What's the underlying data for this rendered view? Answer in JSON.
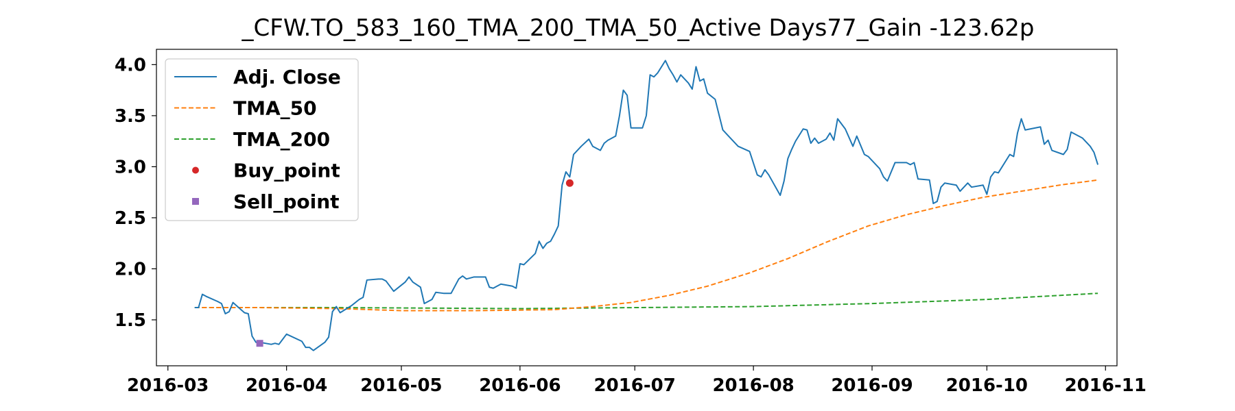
{
  "chart_data": {
    "type": "line",
    "title": "_CFW.TO_583_160_TMA_200_TMA_50_Active Days77_Gain -123.62p",
    "xlabel": "",
    "ylabel": "",
    "xlim": [
      "2016-02-27",
      "2016-11-04"
    ],
    "ylim": [
      1.05,
      4.15
    ],
    "x_ticks": [
      "2016-03",
      "2016-04",
      "2016-05",
      "2016-06",
      "2016-07",
      "2016-08",
      "2016-09",
      "2016-10",
      "2016-11"
    ],
    "y_ticks": [
      1.5,
      2.0,
      2.5,
      3.0,
      3.5,
      4.0
    ],
    "grid": false,
    "legend_position": "upper-left",
    "legend": [
      "Adj. Close",
      "TMA_50",
      "TMA_200",
      "Buy_point",
      "Sell_point"
    ],
    "colors": {
      "adj_close": "#1f77b4",
      "tma_50": "#ff7f0e",
      "tma_200": "#2ca02c",
      "buy_point": "#d62728",
      "sell_point": "#9467bd"
    },
    "series": [
      {
        "name": "Adj. Close",
        "style": "solid",
        "points": [
          [
            "2016-03-08",
            1.62
          ],
          [
            "2016-03-09",
            1.62
          ],
          [
            "2016-03-10",
            1.75
          ],
          [
            "2016-03-11",
            1.73
          ],
          [
            "2016-03-14",
            1.68
          ],
          [
            "2016-03-15",
            1.66
          ],
          [
            "2016-03-16",
            1.56
          ],
          [
            "2016-03-17",
            1.58
          ],
          [
            "2016-03-18",
            1.67
          ],
          [
            "2016-03-21",
            1.57
          ],
          [
            "2016-03-22",
            1.56
          ],
          [
            "2016-03-23",
            1.34
          ],
          [
            "2016-03-24",
            1.28
          ],
          [
            "2016-03-25",
            1.28
          ],
          [
            "2016-03-28",
            1.26
          ],
          [
            "2016-03-29",
            1.27
          ],
          [
            "2016-03-30",
            1.26
          ],
          [
            "2016-03-31",
            1.31
          ],
          [
            "2016-04-01",
            1.36
          ],
          [
            "2016-04-05",
            1.29
          ],
          [
            "2016-04-06",
            1.23
          ],
          [
            "2016-04-07",
            1.23
          ],
          [
            "2016-04-08",
            1.2
          ],
          [
            "2016-04-11",
            1.28
          ],
          [
            "2016-04-12",
            1.33
          ],
          [
            "2016-04-13",
            1.58
          ],
          [
            "2016-04-14",
            1.63
          ],
          [
            "2016-04-15",
            1.57
          ],
          [
            "2016-04-18",
            1.64
          ],
          [
            "2016-04-20",
            1.7
          ],
          [
            "2016-04-21",
            1.72
          ],
          [
            "2016-04-22",
            1.89
          ],
          [
            "2016-04-25",
            1.9
          ],
          [
            "2016-04-26",
            1.9
          ],
          [
            "2016-04-27",
            1.88
          ],
          [
            "2016-04-29",
            1.78
          ],
          [
            "2016-05-02",
            1.87
          ],
          [
            "2016-05-03",
            1.92
          ],
          [
            "2016-05-04",
            1.87
          ],
          [
            "2016-05-06",
            1.82
          ],
          [
            "2016-05-07",
            1.66
          ],
          [
            "2016-05-09",
            1.7
          ],
          [
            "2016-05-10",
            1.77
          ],
          [
            "2016-05-12",
            1.76
          ],
          [
            "2016-05-14",
            1.76
          ],
          [
            "2016-05-16",
            1.9
          ],
          [
            "2016-05-17",
            1.93
          ],
          [
            "2016-05-18",
            1.9
          ],
          [
            "2016-05-20",
            1.92
          ],
          [
            "2016-05-23",
            1.92
          ],
          [
            "2016-05-24",
            1.82
          ],
          [
            "2016-05-25",
            1.81
          ],
          [
            "2016-05-27",
            1.85
          ],
          [
            "2016-05-30",
            1.83
          ],
          [
            "2016-05-31",
            1.81
          ],
          [
            "2016-06-01",
            2.05
          ],
          [
            "2016-06-02",
            2.04
          ],
          [
            "2016-06-05",
            2.15
          ],
          [
            "2016-06-06",
            2.27
          ],
          [
            "2016-06-07",
            2.2
          ],
          [
            "2016-06-08",
            2.25
          ],
          [
            "2016-06-09",
            2.27
          ],
          [
            "2016-06-10",
            2.34
          ],
          [
            "2016-06-11",
            2.42
          ],
          [
            "2016-06-12",
            2.82
          ],
          [
            "2016-06-13",
            2.95
          ],
          [
            "2016-06-14",
            2.9
          ],
          [
            "2016-06-15",
            3.12
          ],
          [
            "2016-06-17",
            3.2
          ],
          [
            "2016-06-19",
            3.27
          ],
          [
            "2016-06-20",
            3.2
          ],
          [
            "2016-06-22",
            3.16
          ],
          [
            "2016-06-23",
            3.23
          ],
          [
            "2016-06-24",
            3.26
          ],
          [
            "2016-06-26",
            3.3
          ],
          [
            "2016-06-27",
            3.5
          ],
          [
            "2016-06-28",
            3.75
          ],
          [
            "2016-06-29",
            3.7
          ],
          [
            "2016-06-30",
            3.38
          ],
          [
            "2016-07-03",
            3.38
          ],
          [
            "2016-07-04",
            3.5
          ],
          [
            "2016-07-05",
            3.9
          ],
          [
            "2016-07-06",
            3.88
          ],
          [
            "2016-07-07",
            3.92
          ],
          [
            "2016-07-08",
            3.98
          ],
          [
            "2016-07-09",
            4.04
          ],
          [
            "2016-07-10",
            3.96
          ],
          [
            "2016-07-11",
            3.9
          ],
          [
            "2016-07-12",
            3.83
          ],
          [
            "2016-07-13",
            3.9
          ],
          [
            "2016-07-15",
            3.82
          ],
          [
            "2016-07-16",
            3.76
          ],
          [
            "2016-07-17",
            3.98
          ],
          [
            "2016-07-18",
            3.84
          ],
          [
            "2016-07-19",
            3.86
          ],
          [
            "2016-07-20",
            3.72
          ],
          [
            "2016-07-22",
            3.66
          ],
          [
            "2016-07-24",
            3.36
          ],
          [
            "2016-07-26",
            3.28
          ],
          [
            "2016-07-28",
            3.2
          ],
          [
            "2016-07-31",
            3.15
          ],
          [
            "2016-08-02",
            2.92
          ],
          [
            "2016-08-03",
            2.9
          ],
          [
            "2016-08-04",
            2.97
          ],
          [
            "2016-08-05",
            2.92
          ],
          [
            "2016-08-08",
            2.72
          ],
          [
            "2016-08-09",
            2.86
          ],
          [
            "2016-08-10",
            3.08
          ],
          [
            "2016-08-11",
            3.17
          ],
          [
            "2016-08-12",
            3.25
          ],
          [
            "2016-08-14",
            3.37
          ],
          [
            "2016-08-15",
            3.36
          ],
          [
            "2016-08-16",
            3.23
          ],
          [
            "2016-08-17",
            3.28
          ],
          [
            "2016-08-18",
            3.23
          ],
          [
            "2016-08-20",
            3.27
          ],
          [
            "2016-08-21",
            3.33
          ],
          [
            "2016-08-22",
            3.26
          ],
          [
            "2016-08-23",
            3.47
          ],
          [
            "2016-08-25",
            3.37
          ],
          [
            "2016-08-27",
            3.2
          ],
          [
            "2016-08-28",
            3.3
          ],
          [
            "2016-08-30",
            3.12
          ],
          [
            "2016-08-31",
            3.1
          ],
          [
            "2016-09-03",
            2.98
          ],
          [
            "2016-09-04",
            2.9
          ],
          [
            "2016-09-05",
            2.86
          ],
          [
            "2016-09-07",
            3.04
          ],
          [
            "2016-09-10",
            3.04
          ],
          [
            "2016-09-11",
            3.02
          ],
          [
            "2016-09-12",
            3.04
          ],
          [
            "2016-09-13",
            2.88
          ],
          [
            "2016-09-16",
            2.87
          ],
          [
            "2016-09-17",
            2.64
          ],
          [
            "2016-09-18",
            2.66
          ],
          [
            "2016-09-19",
            2.8
          ],
          [
            "2016-09-20",
            2.84
          ],
          [
            "2016-09-23",
            2.82
          ],
          [
            "2016-09-24",
            2.76
          ],
          [
            "2016-09-25",
            2.8
          ],
          [
            "2016-09-26",
            2.84
          ],
          [
            "2016-09-27",
            2.8
          ],
          [
            "2016-09-30",
            2.82
          ],
          [
            "2016-10-01",
            2.73
          ],
          [
            "2016-10-02",
            2.9
          ],
          [
            "2016-10-03",
            2.95
          ],
          [
            "2016-10-04",
            2.94
          ],
          [
            "2016-10-07",
            3.12
          ],
          [
            "2016-10-08",
            3.1
          ],
          [
            "2016-10-09",
            3.33
          ],
          [
            "2016-10-10",
            3.47
          ],
          [
            "2016-10-11",
            3.36
          ],
          [
            "2016-10-15",
            3.39
          ],
          [
            "2016-10-16",
            3.22
          ],
          [
            "2016-10-17",
            3.26
          ],
          [
            "2016-10-18",
            3.16
          ],
          [
            "2016-10-21",
            3.12
          ],
          [
            "2016-10-22",
            3.17
          ],
          [
            "2016-10-23",
            3.34
          ],
          [
            "2016-10-26",
            3.28
          ],
          [
            "2016-10-28",
            3.2
          ],
          [
            "2016-10-29",
            3.14
          ],
          [
            "2016-10-30",
            3.02
          ]
        ]
      },
      {
        "name": "TMA_50",
        "style": "dashed",
        "points": [
          [
            "2016-03-08",
            1.62
          ],
          [
            "2016-03-25",
            1.62
          ],
          [
            "2016-04-15",
            1.61
          ],
          [
            "2016-05-01",
            1.59
          ],
          [
            "2016-05-20",
            1.59
          ],
          [
            "2016-06-10",
            1.6
          ],
          [
            "2016-06-20",
            1.63
          ],
          [
            "2016-06-30",
            1.67
          ],
          [
            "2016-07-10",
            1.74
          ],
          [
            "2016-07-20",
            1.83
          ],
          [
            "2016-07-31",
            1.96
          ],
          [
            "2016-08-10",
            2.1
          ],
          [
            "2016-08-20",
            2.26
          ],
          [
            "2016-08-31",
            2.42
          ],
          [
            "2016-09-10",
            2.53
          ],
          [
            "2016-09-20",
            2.62
          ],
          [
            "2016-09-30",
            2.7
          ],
          [
            "2016-10-10",
            2.76
          ],
          [
            "2016-10-20",
            2.82
          ],
          [
            "2016-10-30",
            2.87
          ]
        ]
      },
      {
        "name": "TMA_200",
        "style": "dashed",
        "points": [
          [
            "2016-03-08",
            1.62
          ],
          [
            "2016-04-15",
            1.62
          ],
          [
            "2016-06-01",
            1.61
          ],
          [
            "2016-07-01",
            1.62
          ],
          [
            "2016-08-01",
            1.63
          ],
          [
            "2016-09-01",
            1.66
          ],
          [
            "2016-10-01",
            1.7
          ],
          [
            "2016-10-30",
            1.76
          ]
        ]
      },
      {
        "name": "Buy_point",
        "style": "marker-circle",
        "points": [
          [
            "2016-06-14",
            2.84
          ]
        ]
      },
      {
        "name": "Sell_point",
        "style": "marker-square",
        "points": [
          [
            "2016-03-25",
            1.27
          ]
        ]
      }
    ]
  }
}
